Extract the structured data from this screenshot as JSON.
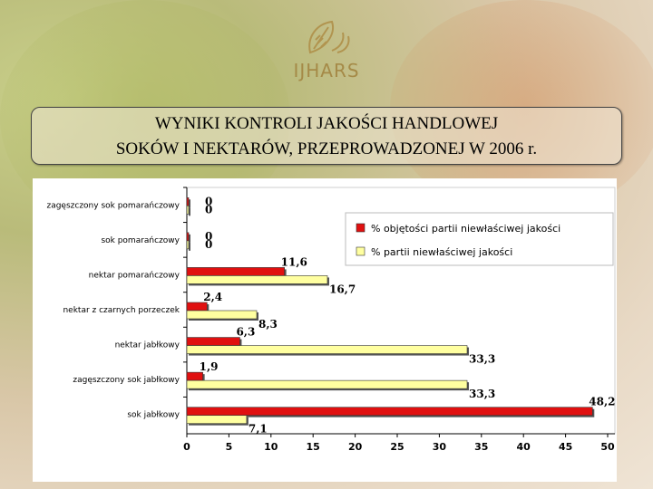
{
  "logo": {
    "icon": "wheat-leaf-icon",
    "text": "IJHARS"
  },
  "title": {
    "line1": "WYNIKI KONTROLI JAKOŚCI HANDLOWEJ",
    "line2": "SOKÓW I NEKTARÓW, PRZEPROWADZONEJ W 2006 r."
  },
  "chart_data": {
    "type": "bar",
    "orientation": "horizontal",
    "categories": [
      "zagęszczony sok pomarańczowy",
      "sok pomarańczowy",
      "nektar pomarańczowy",
      "nektar z czarnych porzeczek",
      "nektar jabłkowy",
      "zagęszczony sok jabłkowy",
      "sok jabłkowy"
    ],
    "series": [
      {
        "name": "% objętości partii niewłaściwej jakości",
        "color": "#e01010",
        "values": [
          0,
          0,
          11.6,
          2.4,
          6.3,
          1.9,
          48.2
        ],
        "labels": [
          "0",
          "0",
          "11,6",
          "2,4",
          "6,3",
          "1,9",
          "48,2"
        ]
      },
      {
        "name": "% partii niewłaściwej jakości",
        "color": "#ffffa0",
        "values": [
          0,
          0,
          16.7,
          8.3,
          33.3,
          33.3,
          7.1
        ],
        "labels": [
          "0",
          "0",
          "16,7",
          "8,3",
          "33,3",
          "33,3",
          "7,1"
        ]
      }
    ],
    "xlim": [
      0,
      50
    ],
    "xticks": [
      "0",
      "5",
      "10",
      "15",
      "20",
      "25",
      "30",
      "35",
      "40",
      "45",
      "50"
    ],
    "legend_position": "top-right",
    "grid": false
  }
}
